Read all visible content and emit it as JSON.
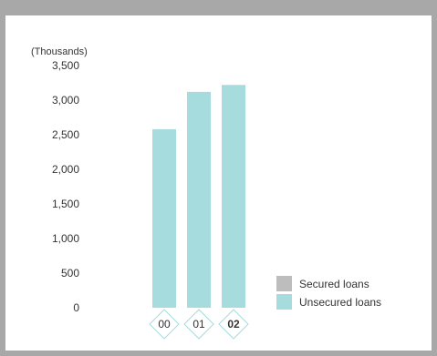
{
  "chart_data": {
    "type": "bar",
    "unit_label": "(Thousands)",
    "categories": [
      "00",
      "01",
      "02"
    ],
    "highlight_category": "02",
    "ylim": [
      0,
      3500
    ],
    "yticks": [
      0,
      500,
      1000,
      1500,
      2000,
      2500,
      3000,
      3500
    ],
    "ytick_labels": [
      "0",
      "500",
      "1,000",
      "1,500",
      "2,000",
      "2,500",
      "3,000",
      "3,500"
    ],
    "series": [
      {
        "name": "Secured loans",
        "values": [
          0,
          0,
          0
        ],
        "color": "#bdbdbd"
      },
      {
        "name": "Unsecured loans",
        "values": [
          2580,
          3120,
          3220
        ],
        "color": "#a6dcde"
      }
    ],
    "legend_position": "bottom-right",
    "grid": false
  },
  "colors": {
    "frame": "#a8a8a8",
    "category_marker_border": "#a6dcde"
  }
}
